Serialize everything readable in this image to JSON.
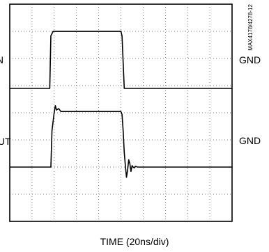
{
  "chart_data": {
    "type": "line",
    "title": "",
    "xlabel": "TIME (20ns/div)",
    "ylabel": "",
    "grid": true,
    "x_divisions": 10,
    "y_divisions": 8,
    "xlim": [
      0,
      200
    ],
    "units": {
      "x": "ns"
    },
    "series": [
      {
        "name": "IN",
        "reference_label": "GND",
        "x": [
          0,
          36,
          37,
          39,
          100,
          101,
          103,
          200
        ],
        "y": [
          0,
          0,
          0.72,
          0.78,
          0.78,
          0.72,
          0,
          0
        ]
      },
      {
        "name": "OUT",
        "reference_label": "GND",
        "x": [
          0,
          37,
          38,
          40,
          41,
          42,
          44,
          46,
          100,
          101,
          102,
          103,
          104,
          105,
          106,
          107,
          108,
          109,
          110,
          111,
          112,
          113,
          115,
          120,
          200
        ],
        "y": [
          0,
          0,
          0.5,
          0.75,
          0.84,
          0.78,
          0.8,
          0.76,
          0.76,
          0.72,
          0.5,
          0.2,
          0.02,
          -0.14,
          -0.04,
          0.1,
          0.05,
          -0.06,
          0.02,
          0.0,
          -0.01,
          0.01,
          0.0,
          0.0,
          0.0
        ]
      }
    ]
  },
  "labels": {
    "in": "IN",
    "out": "OUT",
    "gnd_in": "GND",
    "gnd_out": "GND",
    "side_code": "MAX4178/4278-12"
  }
}
